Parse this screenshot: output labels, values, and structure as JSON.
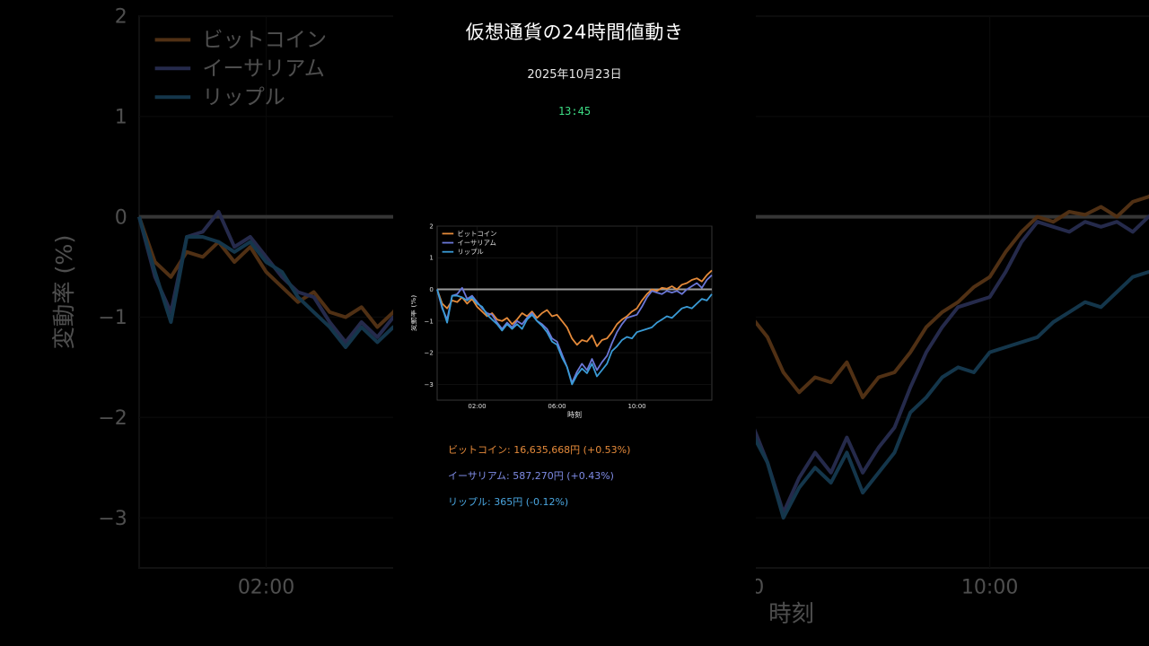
{
  "header": {
    "title": "仮想通貨の24時間値動き",
    "date": "2025年10月23日",
    "time": "13:45"
  },
  "colors": {
    "bitcoin": "#e58a3a",
    "ethereum": "#6b78d8",
    "ripple": "#3a9bd6",
    "zero_line": "#9a9a9a",
    "time_text": "#3ddc84"
  },
  "prices": [
    {
      "name": "ビットコイン",
      "text": "16,635,668円 (+0.53%)",
      "color": "#e58a3a"
    },
    {
      "name": "イーサリアム",
      "text": "587,270円 (+0.43%)",
      "color": "#7f8ce6"
    },
    {
      "name": "リップル",
      "text": "365円 (-0.12%)",
      "color": "#4aa6e0"
    }
  ],
  "chart_data": {
    "type": "line",
    "xlabel": "時刻",
    "ylabel": "変動率 (%)",
    "xlim": [
      0,
      13.75
    ],
    "ylim": [
      -3.5,
      2
    ],
    "yticks": [
      -3,
      -2,
      -1,
      0,
      1,
      2
    ],
    "xticks": [
      {
        "value": 2,
        "label": "02:00"
      },
      {
        "value": 6,
        "label": "06:00"
      },
      {
        "value": 10,
        "label": "10:00"
      }
    ],
    "legend_position": "top-left",
    "grid": true,
    "zero_line": true,
    "series": [
      {
        "name": "ビットコイン",
        "color": "#e58a3a",
        "x": [
          0,
          0.25,
          0.5,
          0.75,
          1,
          1.25,
          1.5,
          1.75,
          2,
          2.25,
          2.5,
          2.75,
          3,
          3.25,
          3.5,
          3.75,
          4,
          4.25,
          4.5,
          4.75,
          5,
          5.25,
          5.5,
          5.75,
          6,
          6.25,
          6.5,
          6.75,
          7,
          7.25,
          7.5,
          7.75,
          8,
          8.25,
          8.5,
          8.75,
          9,
          9.25,
          9.5,
          9.75,
          10,
          10.25,
          10.5,
          10.75,
          11,
          11.25,
          11.5,
          11.75,
          12,
          12.25,
          12.5,
          12.75,
          13,
          13.25,
          13.5,
          13.75
        ],
        "y": [
          0,
          -0.45,
          -0.6,
          -0.35,
          -0.4,
          -0.25,
          -0.45,
          -0.3,
          -0.55,
          -0.7,
          -0.85,
          -0.75,
          -0.95,
          -1.0,
          -0.9,
          -1.1,
          -0.95,
          -0.75,
          -0.85,
          -0.7,
          -0.9,
          -0.75,
          -0.65,
          -0.85,
          -0.8,
          -1.0,
          -1.2,
          -1.55,
          -1.75,
          -1.6,
          -1.65,
          -1.45,
          -1.8,
          -1.6,
          -1.55,
          -1.35,
          -1.1,
          -0.95,
          -0.85,
          -0.7,
          -0.6,
          -0.35,
          -0.15,
          0,
          -0.05,
          0.05,
          0.02,
          0.1,
          0,
          0.15,
          0.2,
          0.3,
          0.35,
          0.25,
          0.45,
          0.6
        ]
      },
      {
        "name": "イーサリアム",
        "color": "#6b78d8",
        "x": [
          0,
          0.25,
          0.5,
          0.75,
          1,
          1.25,
          1.5,
          1.75,
          2,
          2.25,
          2.5,
          2.75,
          3,
          3.25,
          3.5,
          3.75,
          4,
          4.25,
          4.5,
          4.75,
          5,
          5.25,
          5.5,
          5.75,
          6,
          6.25,
          6.5,
          6.75,
          7,
          7.25,
          7.5,
          7.75,
          8,
          8.25,
          8.5,
          8.75,
          9,
          9.25,
          9.5,
          9.75,
          10,
          10.25,
          10.5,
          10.75,
          11,
          11.25,
          11.5,
          11.75,
          12,
          12.25,
          12.5,
          12.75,
          13,
          13.25,
          13.5,
          13.75
        ],
        "y": [
          0,
          -0.6,
          -0.95,
          -0.2,
          -0.15,
          0.05,
          -0.3,
          -0.2,
          -0.4,
          -0.6,
          -0.75,
          -0.8,
          -1.05,
          -1.25,
          -1.05,
          -1.2,
          -1.0,
          -1.1,
          -0.9,
          -0.75,
          -1.0,
          -1.1,
          -1.25,
          -1.55,
          -1.65,
          -2.05,
          -2.45,
          -2.95,
          -2.6,
          -2.35,
          -2.55,
          -2.2,
          -2.55,
          -2.3,
          -2.1,
          -1.7,
          -1.35,
          -1.1,
          -0.9,
          -0.85,
          -0.8,
          -0.55,
          -0.25,
          -0.05,
          -0.1,
          -0.15,
          -0.05,
          -0.1,
          -0.05,
          -0.15,
          0,
          0.1,
          0.2,
          0.05,
          0.3,
          0.45
        ]
      },
      {
        "name": "リップル",
        "color": "#3a9bd6",
        "x": [
          0,
          0.25,
          0.5,
          0.75,
          1,
          1.25,
          1.5,
          1.75,
          2,
          2.25,
          2.5,
          2.75,
          3,
          3.25,
          3.5,
          3.75,
          4,
          4.25,
          4.5,
          4.75,
          5,
          5.25,
          5.5,
          5.75,
          6,
          6.25,
          6.5,
          6.75,
          7,
          7.25,
          7.5,
          7.75,
          8,
          8.25,
          8.5,
          8.75,
          9,
          9.25,
          9.5,
          9.75,
          10,
          10.25,
          10.5,
          10.75,
          11,
          11.25,
          11.5,
          11.75,
          12,
          12.25,
          12.5,
          12.75,
          13,
          13.25,
          13.5,
          13.75
        ],
        "y": [
          0,
          -0.55,
          -1.05,
          -0.2,
          -0.2,
          -0.25,
          -0.35,
          -0.25,
          -0.45,
          -0.55,
          -0.8,
          -0.95,
          -1.1,
          -1.3,
          -1.1,
          -1.25,
          -1.1,
          -1.25,
          -0.95,
          -0.8,
          -1.0,
          -1.15,
          -1.35,
          -1.65,
          -1.75,
          -2.15,
          -2.45,
          -3.0,
          -2.7,
          -2.5,
          -2.65,
          -2.35,
          -2.75,
          -2.55,
          -2.35,
          -1.95,
          -1.8,
          -1.6,
          -1.5,
          -1.55,
          -1.35,
          -1.3,
          -1.25,
          -1.2,
          -1.05,
          -0.95,
          -0.85,
          -0.9,
          -0.75,
          -0.6,
          -0.55,
          -0.6,
          -0.45,
          -0.3,
          -0.35,
          -0.15
        ]
      }
    ]
  }
}
